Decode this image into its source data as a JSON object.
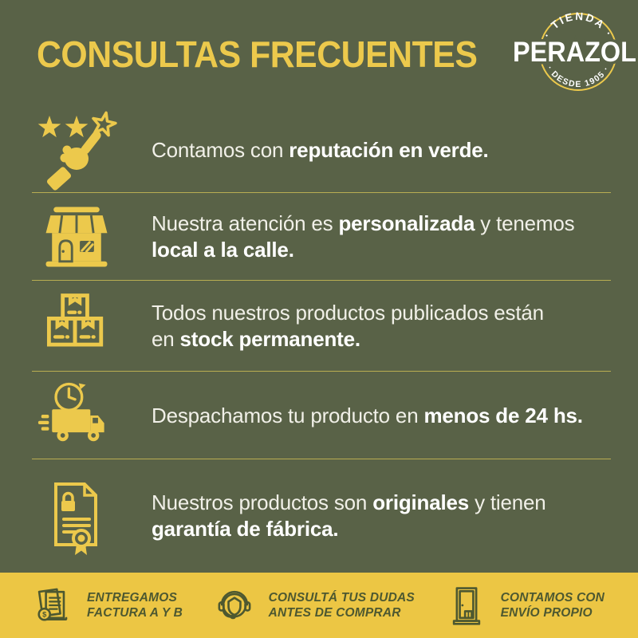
{
  "colors": {
    "background": "#596247",
    "accent_yellow": "#ecc94c",
    "divider": "#b9ad52",
    "text_white": "#ffffff",
    "footer_background": "#ecc644",
    "footer_text": "#4d5830"
  },
  "header": {
    "title": "CONSULTAS FRECUENTES",
    "logo": {
      "arc_top": "· TIENDA ·",
      "name": "PERAZOLI",
      "arc_bottom": "· DESDE 1905 ·"
    }
  },
  "rows": [
    {
      "icon": "rating-stars-hand-icon",
      "segments": [
        {
          "text": "Contamos con ",
          "bold": false
        },
        {
          "text": "reputación en verde.",
          "bold": true
        }
      ]
    },
    {
      "icon": "storefront-icon",
      "segments": [
        {
          "text": "Nuestra atención es ",
          "bold": false
        },
        {
          "text": "personalizada",
          "bold": true
        },
        {
          "text": " y tenemos\n",
          "bold": false
        },
        {
          "text": "local a la calle.",
          "bold": true
        }
      ]
    },
    {
      "icon": "stock-boxes-icon",
      "segments": [
        {
          "text": "Todos nuestros productos publicados están\nen ",
          "bold": false
        },
        {
          "text": "stock permanente.",
          "bold": true
        }
      ]
    },
    {
      "icon": "delivery-truck-icon",
      "segments": [
        {
          "text": "Despachamos tu producto en ",
          "bold": false
        },
        {
          "text": "menos de 24 hs.",
          "bold": true
        }
      ]
    },
    {
      "icon": "warranty-certificate-icon",
      "segments": [
        {
          "text": "Nuestros productos son ",
          "bold": false
        },
        {
          "text": "originales",
          "bold": true
        },
        {
          "text": " y tienen\n",
          "bold": false
        },
        {
          "text": "garantía de fábrica.",
          "bold": true
        }
      ]
    }
  ],
  "footer": {
    "items": [
      {
        "icon": "invoice-icon",
        "line1": "ENTREGAMOS",
        "line2": "FACTURA A Y B"
      },
      {
        "icon": "headset-support-icon",
        "line1": "CONSULTÁ TUS DUDAS",
        "line2": "ANTES DE COMPRAR"
      },
      {
        "icon": "door-delivery-icon",
        "line1": "CONTAMOS CON",
        "line2": "ENVÍO PROPIO"
      }
    ]
  }
}
